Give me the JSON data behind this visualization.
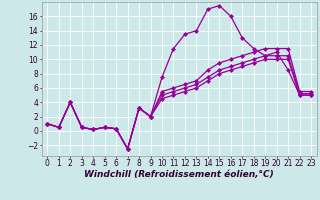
{
  "background_color": "#cce8e8",
  "line_color": "#990099",
  "marker": "D",
  "markersize": 2.5,
  "linewidth": 0.9,
  "xlabel": "Windchill (Refroidissement éolien,°C)",
  "xlabel_fontsize": 6.5,
  "tick_fontsize": 5.5,
  "xlim": [
    -0.5,
    23.5
  ],
  "ylim": [
    -3.5,
    18.0
  ],
  "yticks": [
    -2,
    0,
    2,
    4,
    6,
    8,
    10,
    12,
    14,
    16
  ],
  "xticks": [
    0,
    1,
    2,
    3,
    4,
    5,
    6,
    7,
    8,
    9,
    10,
    11,
    12,
    13,
    14,
    15,
    16,
    17,
    18,
    19,
    20,
    21,
    22,
    23
  ],
  "lines": [
    {
      "x": [
        0,
        1,
        2,
        3,
        4,
        5,
        6,
        7,
        8,
        9,
        10,
        11,
        12,
        13,
        14,
        15,
        16,
        17,
        18,
        19,
        20,
        21,
        22,
        23
      ],
      "y": [
        1.0,
        0.5,
        4.0,
        0.5,
        0.2,
        0.5,
        0.3,
        -2.5,
        3.2,
        2.0,
        7.5,
        11.5,
        13.5,
        14.0,
        17.0,
        17.5,
        16.0,
        13.0,
        11.5,
        10.5,
        11.0,
        8.5,
        5.0,
        5.0
      ]
    },
    {
      "x": [
        0,
        1,
        2,
        3,
        4,
        5,
        6,
        7,
        8,
        9,
        10,
        11,
        12,
        13,
        14,
        15,
        16,
        17,
        18,
        19,
        20,
        21,
        22,
        23
      ],
      "y": [
        1.0,
        0.5,
        4.0,
        0.5,
        0.2,
        0.5,
        0.3,
        -2.5,
        3.2,
        2.0,
        5.0,
        5.5,
        6.0,
        6.5,
        7.5,
        8.5,
        9.0,
        9.5,
        10.0,
        10.5,
        10.5,
        10.5,
        5.2,
        5.2
      ]
    },
    {
      "x": [
        0,
        1,
        2,
        3,
        4,
        5,
        6,
        7,
        8,
        9,
        10,
        11,
        12,
        13,
        14,
        15,
        16,
        17,
        18,
        19,
        20,
        21,
        22,
        23
      ],
      "y": [
        1.0,
        0.5,
        4.0,
        0.5,
        0.2,
        0.5,
        0.3,
        -2.5,
        3.2,
        2.0,
        5.5,
        6.0,
        6.5,
        7.0,
        8.5,
        9.5,
        10.0,
        10.5,
        11.0,
        11.5,
        11.5,
        11.5,
        5.5,
        5.5
      ]
    },
    {
      "x": [
        0,
        1,
        2,
        3,
        4,
        5,
        6,
        7,
        8,
        9,
        10,
        11,
        12,
        13,
        14,
        15,
        16,
        17,
        18,
        19,
        20,
        21,
        22,
        23
      ],
      "y": [
        1.0,
        0.5,
        4.0,
        0.5,
        0.2,
        0.5,
        0.3,
        -2.5,
        3.2,
        2.0,
        4.5,
        5.0,
        5.5,
        6.0,
        7.0,
        8.0,
        8.5,
        9.0,
        9.5,
        10.0,
        10.0,
        10.0,
        5.0,
        5.0
      ]
    }
  ]
}
